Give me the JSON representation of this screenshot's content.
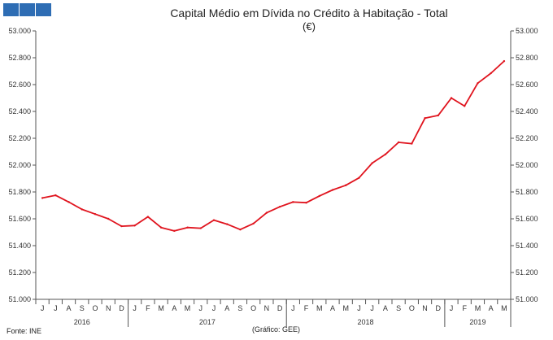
{
  "header": {
    "title": "Capital Médio em Dívida no Crédito à Habitação - Total",
    "subtitle": "(€)"
  },
  "footer": {
    "source": "Fonte: INE",
    "credit": "(Gráfico: GEE)"
  },
  "chart_data": {
    "type": "line",
    "title": "Capital Médio em Dívida no Crédito à Habitação - Total",
    "subtitle": "(€)",
    "ylim": [
      51000,
      53000
    ],
    "y_ticks": [
      "51.000",
      "51.200",
      "51.400",
      "51.600",
      "51.800",
      "52.000",
      "52.200",
      "52.400",
      "52.600",
      "52.800",
      "53.000"
    ],
    "grid": false,
    "month_labels": [
      "J",
      "J",
      "A",
      "S",
      "O",
      "N",
      "D",
      "J",
      "F",
      "M",
      "A",
      "M",
      "J",
      "J",
      "A",
      "S",
      "O",
      "N",
      "D",
      "J",
      "F",
      "M",
      "A",
      "M",
      "J",
      "J",
      "A",
      "S",
      "O",
      "N",
      "D",
      "J",
      "F",
      "M",
      "A",
      "M"
    ],
    "years": [
      {
        "label": "2016",
        "first_month": 0,
        "last_month": 6
      },
      {
        "label": "2017",
        "first_month": 7,
        "last_month": 18
      },
      {
        "label": "2018",
        "first_month": 19,
        "last_month": 30
      },
      {
        "label": "2019",
        "first_month": 31,
        "last_month": 35
      }
    ],
    "series": [
      {
        "color": "#e0141e",
        "values": [
          51755,
          51775,
          51725,
          51670,
          51635,
          51600,
          51545,
          51550,
          51615,
          51535,
          51510,
          51535,
          51530,
          51590,
          51560,
          51520,
          51565,
          51645,
          51690,
          51725,
          51720,
          51770,
          51815,
          51850,
          51905,
          52015,
          52080,
          52170,
          52160,
          52350,
          52370,
          52500,
          52440,
          52610,
          52685,
          52775
        ]
      }
    ]
  }
}
